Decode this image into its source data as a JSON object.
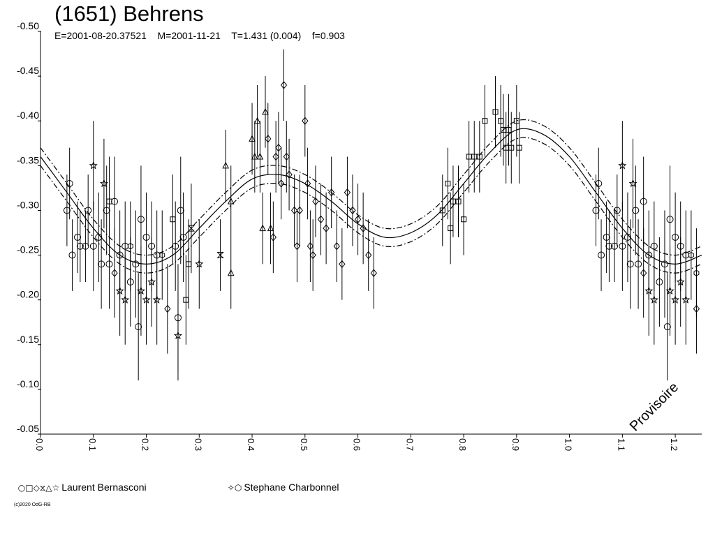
{
  "chart_data": {
    "type": "scatter",
    "title": "(1651) Behrens",
    "subtitle": "E=2001-08-20.37521    M=2001-11-21    T=1.431 (0.004)    f=0.903",
    "watermark": "Provisoire",
    "copyright": "(c)2020 OdG-RB",
    "xlim": [
      0.0,
      1.25
    ],
    "ylim": [
      -0.5,
      -0.05
    ],
    "y_inverted": true,
    "x_ticks": [
      "0.0",
      "0.1",
      "0.2",
      "0.3",
      "0.4",
      "0.5",
      "0.6",
      "0.7",
      "0.8",
      "0.9",
      "1.0",
      "1.1",
      "1.2"
    ],
    "y_ticks": [
      "-0.50",
      "-0.45",
      "-0.40",
      "-0.35",
      "-0.30",
      "-0.25",
      "-0.20",
      "-0.15",
      "-0.10",
      "-0.05"
    ],
    "fit_curve": {
      "description": "Fourier fit with upper/lower uncertainty bands",
      "x": [
        0.0,
        0.05,
        0.1,
        0.15,
        0.2,
        0.25,
        0.3,
        0.35,
        0.4,
        0.45,
        0.5,
        0.55,
        0.6,
        0.65,
        0.7,
        0.75,
        0.8,
        0.85,
        0.9,
        0.95,
        1.0,
        1.05,
        1.1,
        1.15,
        1.2,
        1.25
      ],
      "y": [
        -0.36,
        -0.32,
        -0.28,
        -0.25,
        -0.24,
        -0.25,
        -0.28,
        -0.31,
        -0.335,
        -0.34,
        -0.33,
        -0.31,
        -0.285,
        -0.27,
        -0.275,
        -0.295,
        -0.33,
        -0.365,
        -0.39,
        -0.385,
        -0.36,
        -0.32,
        -0.28,
        -0.25,
        -0.24,
        -0.25
      ],
      "band": 0.01
    },
    "series": [
      {
        "name": "Laurent Bernasconi",
        "symbols": [
          "circle",
          "square",
          "diamond",
          "hourglass",
          "triangle",
          "star"
        ],
        "points": [
          {
            "x": 0.05,
            "y": -0.3,
            "err": 0.04,
            "s": "circle"
          },
          {
            "x": 0.055,
            "y": -0.33,
            "err": 0.04,
            "s": "circle"
          },
          {
            "x": 0.06,
            "y": -0.25,
            "err": 0.04,
            "s": "circle"
          },
          {
            "x": 0.07,
            "y": -0.27,
            "err": 0.04,
            "s": "circle"
          },
          {
            "x": 0.075,
            "y": -0.26,
            "err": 0.04,
            "s": "circle"
          },
          {
            "x": 0.085,
            "y": -0.26,
            "err": 0.04,
            "s": "circle"
          },
          {
            "x": 0.09,
            "y": -0.3,
            "err": 0.04,
            "s": "circle"
          },
          {
            "x": 0.1,
            "y": -0.26,
            "err": 0.05,
            "s": "circle"
          },
          {
            "x": 0.11,
            "y": -0.27,
            "err": 0.05,
            "s": "circle"
          },
          {
            "x": 0.115,
            "y": -0.24,
            "err": 0.05,
            "s": "circle"
          },
          {
            "x": 0.125,
            "y": -0.3,
            "err": 0.05,
            "s": "circle"
          },
          {
            "x": 0.13,
            "y": -0.24,
            "err": 0.05,
            "s": "circle"
          },
          {
            "x": 0.14,
            "y": -0.31,
            "err": 0.05,
            "s": "circle"
          },
          {
            "x": 0.15,
            "y": -0.25,
            "err": 0.05,
            "s": "circle"
          },
          {
            "x": 0.16,
            "y": -0.26,
            "err": 0.05,
            "s": "circle"
          },
          {
            "x": 0.17,
            "y": -0.22,
            "err": 0.05,
            "s": "circle"
          },
          {
            "x": 0.18,
            "y": -0.24,
            "err": 0.06,
            "s": "circle"
          },
          {
            "x": 0.185,
            "y": -0.17,
            "err": 0.06,
            "s": "circle"
          },
          {
            "x": 0.19,
            "y": -0.29,
            "err": 0.06,
            "s": "circle"
          },
          {
            "x": 0.2,
            "y": -0.27,
            "err": 0.05,
            "s": "circle"
          },
          {
            "x": 0.21,
            "y": -0.26,
            "err": 0.05,
            "s": "circle"
          },
          {
            "x": 0.22,
            "y": -0.25,
            "err": 0.05,
            "s": "circle"
          },
          {
            "x": 0.13,
            "y": -0.31,
            "err": 0.05,
            "s": "square"
          },
          {
            "x": 0.14,
            "y": -0.23,
            "err": 0.05,
            "s": "diamond"
          },
          {
            "x": 0.24,
            "y": -0.19,
            "err": 0.05,
            "s": "diamond"
          },
          {
            "x": 0.25,
            "y": -0.29,
            "err": 0.05,
            "s": "square"
          },
          {
            "x": 0.255,
            "y": -0.26,
            "err": 0.05,
            "s": "circle"
          },
          {
            "x": 0.26,
            "y": -0.18,
            "err": 0.06,
            "s": "circle"
          },
          {
            "x": 0.265,
            "y": -0.3,
            "err": 0.06,
            "s": "circle"
          },
          {
            "x": 0.27,
            "y": -0.27,
            "err": 0.05,
            "s": "circle"
          },
          {
            "x": 0.275,
            "y": -0.2,
            "err": 0.05,
            "s": "square"
          },
          {
            "x": 0.28,
            "y": -0.24,
            "err": 0.05,
            "s": "square"
          },
          {
            "x": 0.285,
            "y": -0.28,
            "err": 0.05,
            "s": "hourglass"
          },
          {
            "x": 0.26,
            "y": -0.16,
            "err": 0.05,
            "s": "star"
          },
          {
            "x": 0.1,
            "y": -0.35,
            "err": 0.05,
            "s": "star"
          },
          {
            "x": 0.12,
            "y": -0.33,
            "err": 0.05,
            "s": "star"
          },
          {
            "x": 0.3,
            "y": -0.24,
            "err": 0.05,
            "s": "star"
          },
          {
            "x": 0.34,
            "y": -0.25,
            "err": 0.04,
            "s": "hourglass"
          },
          {
            "x": 0.35,
            "y": -0.35,
            "err": 0.04,
            "s": "triangle"
          },
          {
            "x": 0.36,
            "y": -0.31,
            "err": 0.04,
            "s": "triangle"
          },
          {
            "x": 0.36,
            "y": -0.23,
            "err": 0.04,
            "s": "triangle"
          },
          {
            "x": 0.4,
            "y": -0.38,
            "err": 0.04,
            "s": "triangle"
          },
          {
            "x": 0.405,
            "y": -0.36,
            "err": 0.04,
            "s": "triangle"
          },
          {
            "x": 0.41,
            "y": -0.4,
            "err": 0.04,
            "s": "triangle"
          },
          {
            "x": 0.415,
            "y": -0.36,
            "err": 0.04,
            "s": "triangle"
          },
          {
            "x": 0.42,
            "y": -0.28,
            "err": 0.04,
            "s": "triangle"
          },
          {
            "x": 0.425,
            "y": -0.41,
            "err": 0.04,
            "s": "triangle"
          },
          {
            "x": 0.43,
            "y": -0.38,
            "err": 0.04,
            "s": "diamond"
          },
          {
            "x": 0.435,
            "y": -0.28,
            "err": 0.04,
            "s": "triangle"
          },
          {
            "x": 0.44,
            "y": -0.27,
            "err": 0.04,
            "s": "diamond"
          },
          {
            "x": 0.445,
            "y": -0.36,
            "err": 0.04,
            "s": "diamond"
          },
          {
            "x": 0.45,
            "y": -0.37,
            "err": 0.04,
            "s": "diamond"
          },
          {
            "x": 0.455,
            "y": -0.33,
            "err": 0.04,
            "s": "diamond"
          },
          {
            "x": 0.46,
            "y": -0.44,
            "err": 0.04,
            "s": "diamond"
          },
          {
            "x": 0.465,
            "y": -0.36,
            "err": 0.04,
            "s": "diamond"
          },
          {
            "x": 0.47,
            "y": -0.34,
            "err": 0.04,
            "s": "diamond"
          },
          {
            "x": 0.48,
            "y": -0.3,
            "err": 0.04,
            "s": "diamond"
          },
          {
            "x": 0.485,
            "y": -0.26,
            "err": 0.04,
            "s": "diamond"
          },
          {
            "x": 0.49,
            "y": -0.3,
            "err": 0.04,
            "s": "diamond"
          },
          {
            "x": 0.5,
            "y": -0.4,
            "err": 0.04,
            "s": "diamond"
          },
          {
            "x": 0.505,
            "y": -0.33,
            "err": 0.04,
            "s": "diamond"
          },
          {
            "x": 0.51,
            "y": -0.26,
            "err": 0.04,
            "s": "diamond"
          },
          {
            "x": 0.515,
            "y": -0.25,
            "err": 0.04,
            "s": "diamond"
          },
          {
            "x": 0.52,
            "y": -0.31,
            "err": 0.04,
            "s": "diamond"
          },
          {
            "x": 0.53,
            "y": -0.29,
            "err": 0.04,
            "s": "diamond"
          },
          {
            "x": 0.54,
            "y": -0.28,
            "err": 0.04,
            "s": "diamond"
          },
          {
            "x": 0.55,
            "y": -0.32,
            "err": 0.04,
            "s": "diamond"
          },
          {
            "x": 0.56,
            "y": -0.26,
            "err": 0.04,
            "s": "diamond"
          },
          {
            "x": 0.57,
            "y": -0.24,
            "err": 0.04,
            "s": "diamond"
          },
          {
            "x": 0.58,
            "y": -0.32,
            "err": 0.04,
            "s": "diamond"
          },
          {
            "x": 0.59,
            "y": -0.3,
            "err": 0.04,
            "s": "diamond"
          },
          {
            "x": 0.6,
            "y": -0.29,
            "err": 0.04,
            "s": "diamond"
          },
          {
            "x": 0.61,
            "y": -0.28,
            "err": 0.04,
            "s": "diamond"
          },
          {
            "x": 0.62,
            "y": -0.25,
            "err": 0.04,
            "s": "diamond"
          },
          {
            "x": 0.63,
            "y": -0.23,
            "err": 0.04,
            "s": "diamond"
          },
          {
            "x": 0.76,
            "y": -0.3,
            "err": 0.04,
            "s": "square"
          },
          {
            "x": 0.77,
            "y": -0.33,
            "err": 0.04,
            "s": "square"
          },
          {
            "x": 0.775,
            "y": -0.28,
            "err": 0.04,
            "s": "square"
          },
          {
            "x": 0.78,
            "y": -0.31,
            "err": 0.04,
            "s": "square"
          },
          {
            "x": 0.79,
            "y": -0.31,
            "err": 0.04,
            "s": "square"
          },
          {
            "x": 0.8,
            "y": -0.29,
            "err": 0.04,
            "s": "square"
          },
          {
            "x": 0.81,
            "y": -0.36,
            "err": 0.04,
            "s": "square"
          },
          {
            "x": 0.82,
            "y": -0.36,
            "err": 0.04,
            "s": "square"
          },
          {
            "x": 0.83,
            "y": -0.36,
            "err": 0.04,
            "s": "square"
          },
          {
            "x": 0.84,
            "y": -0.4,
            "err": 0.04,
            "s": "square"
          },
          {
            "x": 0.86,
            "y": -0.41,
            "err": 0.04,
            "s": "square"
          },
          {
            "x": 0.87,
            "y": -0.4,
            "err": 0.04,
            "s": "square"
          },
          {
            "x": 0.875,
            "y": -0.39,
            "err": 0.04,
            "s": "square"
          },
          {
            "x": 0.88,
            "y": -0.37,
            "err": 0.04,
            "s": "square"
          },
          {
            "x": 0.885,
            "y": -0.39,
            "err": 0.04,
            "s": "square"
          },
          {
            "x": 0.89,
            "y": -0.37,
            "err": 0.04,
            "s": "square"
          },
          {
            "x": 0.9,
            "y": -0.4,
            "err": 0.04,
            "s": "square"
          },
          {
            "x": 0.905,
            "y": -0.37,
            "err": 0.04,
            "s": "square"
          },
          {
            "x": 1.05,
            "y": -0.3,
            "err": 0.04,
            "s": "circle"
          },
          {
            "x": 1.055,
            "y": -0.33,
            "err": 0.04,
            "s": "circle"
          },
          {
            "x": 1.06,
            "y": -0.25,
            "err": 0.04,
            "s": "circle"
          },
          {
            "x": 1.07,
            "y": -0.27,
            "err": 0.04,
            "s": "circle"
          },
          {
            "x": 1.075,
            "y": -0.26,
            "err": 0.04,
            "s": "circle"
          },
          {
            "x": 1.085,
            "y": -0.26,
            "err": 0.04,
            "s": "circle"
          },
          {
            "x": 1.09,
            "y": -0.3,
            "err": 0.04,
            "s": "circle"
          },
          {
            "x": 1.1,
            "y": -0.26,
            "err": 0.05,
            "s": "circle"
          },
          {
            "x": 1.11,
            "y": -0.27,
            "err": 0.05,
            "s": "circle"
          },
          {
            "x": 1.115,
            "y": -0.24,
            "err": 0.05,
            "s": "circle"
          },
          {
            "x": 1.125,
            "y": -0.3,
            "err": 0.05,
            "s": "circle"
          },
          {
            "x": 1.13,
            "y": -0.24,
            "err": 0.05,
            "s": "circle"
          },
          {
            "x": 1.14,
            "y": -0.31,
            "err": 0.05,
            "s": "circle"
          },
          {
            "x": 1.15,
            "y": -0.25,
            "err": 0.05,
            "s": "circle"
          },
          {
            "x": 1.16,
            "y": -0.26,
            "err": 0.05,
            "s": "circle"
          },
          {
            "x": 1.17,
            "y": -0.22,
            "err": 0.05,
            "s": "circle"
          },
          {
            "x": 1.18,
            "y": -0.24,
            "err": 0.06,
            "s": "circle"
          },
          {
            "x": 1.185,
            "y": -0.17,
            "err": 0.06,
            "s": "circle"
          },
          {
            "x": 1.19,
            "y": -0.29,
            "err": 0.06,
            "s": "circle"
          },
          {
            "x": 1.2,
            "y": -0.27,
            "err": 0.05,
            "s": "circle"
          },
          {
            "x": 1.21,
            "y": -0.26,
            "err": 0.05,
            "s": "circle"
          },
          {
            "x": 1.22,
            "y": -0.25,
            "err": 0.05,
            "s": "circle"
          },
          {
            "x": 1.1,
            "y": -0.35,
            "err": 0.05,
            "s": "star"
          },
          {
            "x": 1.12,
            "y": -0.33,
            "err": 0.05,
            "s": "star"
          },
          {
            "x": 1.14,
            "y": -0.23,
            "err": 0.05,
            "s": "diamond"
          },
          {
            "x": 1.24,
            "y": -0.19,
            "err": 0.05,
            "s": "diamond"
          }
        ]
      },
      {
        "name": "Stephane Charbonnel",
        "symbols": [
          "star",
          "hexagon"
        ],
        "points": [
          {
            "x": 0.15,
            "y": -0.21,
            "err": 0.05,
            "s": "star"
          },
          {
            "x": 0.16,
            "y": -0.2,
            "err": 0.05,
            "s": "star"
          },
          {
            "x": 0.19,
            "y": -0.21,
            "err": 0.05,
            "s": "star"
          },
          {
            "x": 0.2,
            "y": -0.2,
            "err": 0.05,
            "s": "star"
          },
          {
            "x": 0.21,
            "y": -0.22,
            "err": 0.05,
            "s": "star"
          },
          {
            "x": 0.22,
            "y": -0.2,
            "err": 0.05,
            "s": "star"
          },
          {
            "x": 0.17,
            "y": -0.26,
            "err": 0.05,
            "s": "hexagon"
          },
          {
            "x": 0.23,
            "y": -0.25,
            "err": 0.05,
            "s": "hexagon"
          },
          {
            "x": 1.15,
            "y": -0.21,
            "err": 0.05,
            "s": "star"
          },
          {
            "x": 1.16,
            "y": -0.2,
            "err": 0.05,
            "s": "star"
          },
          {
            "x": 1.19,
            "y": -0.21,
            "err": 0.05,
            "s": "star"
          },
          {
            "x": 1.2,
            "y": -0.2,
            "err": 0.05,
            "s": "star"
          },
          {
            "x": 1.21,
            "y": -0.22,
            "err": 0.05,
            "s": "star"
          },
          {
            "x": 1.22,
            "y": -0.2,
            "err": 0.05,
            "s": "star"
          },
          {
            "x": 1.23,
            "y": -0.25,
            "err": 0.05,
            "s": "hexagon"
          },
          {
            "x": 1.24,
            "y": -0.23,
            "err": 0.05,
            "s": "hexagon"
          }
        ]
      }
    ],
    "legend": [
      {
        "symbols": "○□◇⧖△☆",
        "label": "Laurent Bernasconi"
      },
      {
        "symbols": "✧⬡",
        "label": "Stephane Charbonnel"
      }
    ]
  }
}
